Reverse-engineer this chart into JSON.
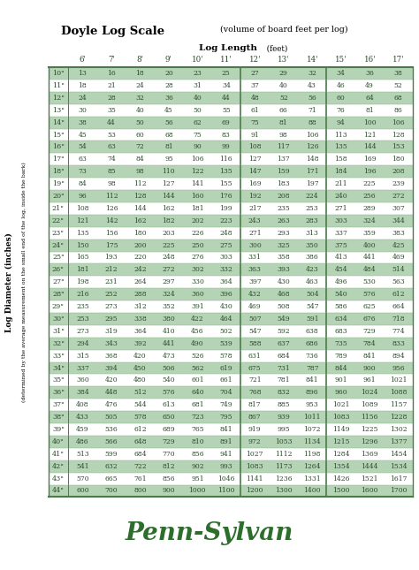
{
  "title_bold": "Doyle Log Scale",
  "title_sub": " (volume of board feet per log)",
  "col_header_label": "Log Length",
  "col_header_sub": " (feet)",
  "col_labels": [
    "6'",
    "7'",
    "8'",
    "9'",
    "10'",
    "11'",
    "12'",
    "13'",
    "14'",
    "15'",
    "16'",
    "17'"
  ],
  "row_labels": [
    "10\"",
    "11\"",
    "12\"",
    "13\"",
    "14\"",
    "15\"",
    "16\"",
    "17\"",
    "18\"",
    "19\"",
    "20\"",
    "21\"",
    "22\"",
    "23\"",
    "24\"",
    "25\"",
    "26\"",
    "27\"",
    "28\"",
    "29\"",
    "30\"",
    "31\"",
    "32\"",
    "33\"",
    "34\"",
    "35\"",
    "36\"",
    "37\"",
    "38\"",
    "39\"",
    "40\"",
    "41\"",
    "42\"",
    "43\"",
    "44\""
  ],
  "row_axis_label": "Log Diameter (inches)",
  "row_axis_sub": "(determined by the average measurement on the small end of the log, inside the bark)",
  "table_data": [
    [
      13,
      16,
      18,
      20,
      23,
      25,
      27,
      29,
      32,
      34,
      36,
      38
    ],
    [
      18,
      21,
      24,
      28,
      31,
      34,
      37,
      40,
      43,
      46,
      49,
      52
    ],
    [
      24,
      28,
      32,
      36,
      40,
      44,
      48,
      52,
      56,
      60,
      64,
      68
    ],
    [
      30,
      35,
      40,
      45,
      50,
      55,
      61,
      66,
      71,
      76,
      81,
      86
    ],
    [
      38,
      44,
      50,
      56,
      62,
      69,
      75,
      81,
      88,
      94,
      100,
      106
    ],
    [
      45,
      53,
      60,
      68,
      75,
      83,
      91,
      98,
      106,
      113,
      121,
      128
    ],
    [
      54,
      63,
      72,
      81,
      90,
      99,
      108,
      117,
      126,
      135,
      144,
      153
    ],
    [
      63,
      74,
      84,
      95,
      106,
      116,
      127,
      137,
      148,
      158,
      169,
      180
    ],
    [
      73,
      85,
      98,
      110,
      122,
      135,
      147,
      159,
      171,
      184,
      196,
      208
    ],
    [
      84,
      98,
      112,
      127,
      141,
      155,
      169,
      183,
      197,
      211,
      225,
      239
    ],
    [
      96,
      112,
      128,
      144,
      160,
      176,
      192,
      208,
      224,
      240,
      256,
      272
    ],
    [
      108,
      126,
      144,
      162,
      181,
      199,
      217,
      235,
      253,
      271,
      289,
      307
    ],
    [
      121,
      142,
      162,
      182,
      202,
      223,
      243,
      263,
      283,
      303,
      324,
      344
    ],
    [
      135,
      156,
      180,
      203,
      226,
      248,
      271,
      293,
      313,
      337,
      359,
      383
    ],
    [
      150,
      175,
      200,
      225,
      250,
      275,
      300,
      325,
      350,
      375,
      400,
      425
    ],
    [
      165,
      193,
      220,
      248,
      276,
      303,
      331,
      358,
      386,
      413,
      441,
      469
    ],
    [
      181,
      212,
      242,
      272,
      302,
      332,
      363,
      393,
      423,
      454,
      484,
      514
    ],
    [
      198,
      231,
      264,
      297,
      330,
      364,
      397,
      430,
      463,
      496,
      530,
      563
    ],
    [
      216,
      252,
      288,
      324,
      360,
      396,
      432,
      468,
      504,
      540,
      576,
      612
    ],
    [
      235,
      273,
      312,
      352,
      391,
      430,
      469,
      508,
      547,
      586,
      625,
      664
    ],
    [
      253,
      295,
      338,
      380,
      422,
      464,
      507,
      549,
      591,
      634,
      676,
      718
    ],
    [
      273,
      319,
      364,
      410,
      456,
      502,
      547,
      592,
      638,
      683,
      729,
      774
    ],
    [
      294,
      343,
      392,
      441,
      490,
      539,
      588,
      637,
      686,
      735,
      784,
      833
    ],
    [
      315,
      368,
      420,
      473,
      526,
      578,
      631,
      684,
      736,
      789,
      841,
      894
    ],
    [
      337,
      394,
      450,
      506,
      562,
      619,
      675,
      731,
      787,
      844,
      900,
      956
    ],
    [
      360,
      420,
      480,
      540,
      601,
      661,
      721,
      781,
      841,
      901,
      961,
      1021
    ],
    [
      384,
      448,
      512,
      576,
      640,
      704,
      768,
      832,
      896,
      960,
      1024,
      1088
    ],
    [
      408,
      476,
      544,
      613,
      681,
      749,
      817,
      885,
      953,
      1021,
      1089,
      1157
    ],
    [
      433,
      505,
      578,
      650,
      723,
      795,
      867,
      939,
      1011,
      1083,
      1156,
      1228
    ],
    [
      459,
      536,
      612,
      689,
      765,
      841,
      919,
      995,
      1072,
      1149,
      1225,
      1302
    ],
    [
      486,
      566,
      648,
      729,
      810,
      891,
      972,
      1053,
      1134,
      1215,
      1296,
      1377
    ],
    [
      513,
      599,
      684,
      770,
      856,
      941,
      1027,
      1112,
      1198,
      1284,
      1369,
      1454
    ],
    [
      541,
      632,
      722,
      812,
      902,
      993,
      1083,
      1173,
      1264,
      1354,
      1444,
      1534
    ],
    [
      570,
      665,
      761,
      856,
      951,
      1046,
      1141,
      1236,
      1331,
      1426,
      1521,
      1617
    ],
    [
      600,
      700,
      800,
      900,
      1000,
      1100,
      1200,
      1300,
      1400,
      1500,
      1600,
      1700
    ]
  ],
  "shaded_color": "#b5d4b5",
  "white_color": "#ffffff",
  "border_color": "#4a7a4a",
  "text_color": "#2a4a2a",
  "footer_text": "Penn-Sylvan",
  "footer_color": "#2d6e2d",
  "bg_color": "#ffffff"
}
